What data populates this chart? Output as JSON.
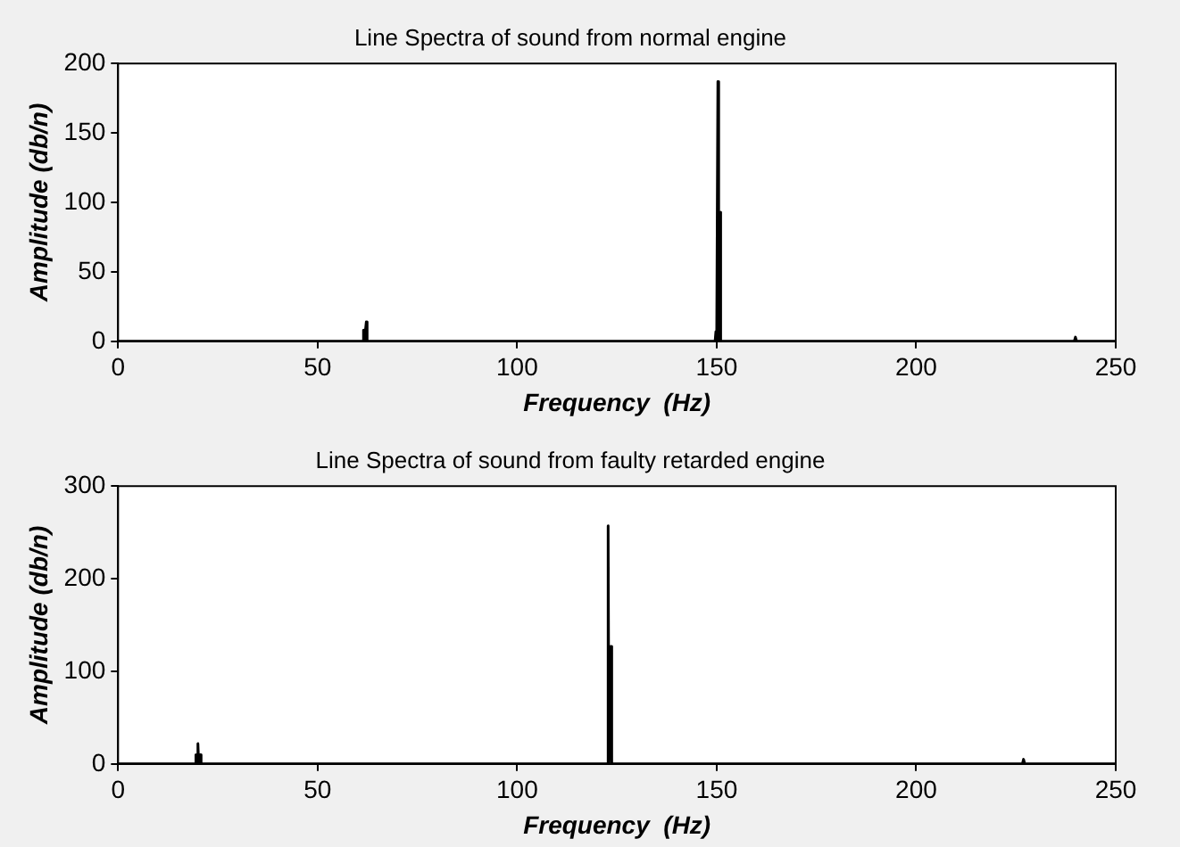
{
  "chart_data": [
    {
      "type": "line",
      "title": "Line Spectra of sound from normal engine",
      "xlabel": "Frequency  (Hz)",
      "ylabel": "Amplitude (db/n)",
      "color": "#000000",
      "x": [
        0,
        61.3,
        61.5,
        61.7,
        62.0,
        62.2,
        62.4,
        149.6,
        149.8,
        150.0,
        150.3,
        150.5,
        150.8,
        151.0,
        239.6,
        239.9,
        240.2,
        250
      ],
      "values": [
        0,
        0,
        8,
        0,
        0,
        14,
        0,
        0,
        7,
        0,
        187,
        0,
        93,
        0,
        0,
        3,
        0,
        0
      ],
      "xlim": [
        0,
        250
      ],
      "ylim": [
        0,
        200
      ],
      "xticks": [
        0,
        50,
        100,
        150,
        200,
        250
      ],
      "yticks": [
        0,
        50,
        100,
        150,
        200
      ]
    },
    {
      "type": "line",
      "title": "Line Spectra of sound from faulty retarded engine",
      "xlabel": "Frequency  (Hz)",
      "ylabel": "Amplitude (db/n)",
      "color": "#000000",
      "x": [
        0,
        19.2,
        19.4,
        19.6,
        19.8,
        20.0,
        20.2,
        20.4,
        20.6,
        20.8,
        122.6,
        122.8,
        123.0,
        123.3,
        123.5,
        123.7,
        226.6,
        226.9,
        227.2,
        250
      ],
      "values": [
        0,
        0,
        10,
        0,
        0,
        22,
        0,
        0,
        10,
        0,
        0,
        257,
        0,
        0,
        127,
        0,
        0,
        5,
        0,
        0
      ],
      "xlim": [
        0,
        250
      ],
      "ylim": [
        0,
        300
      ],
      "xticks": [
        0,
        50,
        100,
        150,
        200,
        250
      ],
      "yticks": [
        0,
        100,
        200,
        300
      ]
    }
  ]
}
